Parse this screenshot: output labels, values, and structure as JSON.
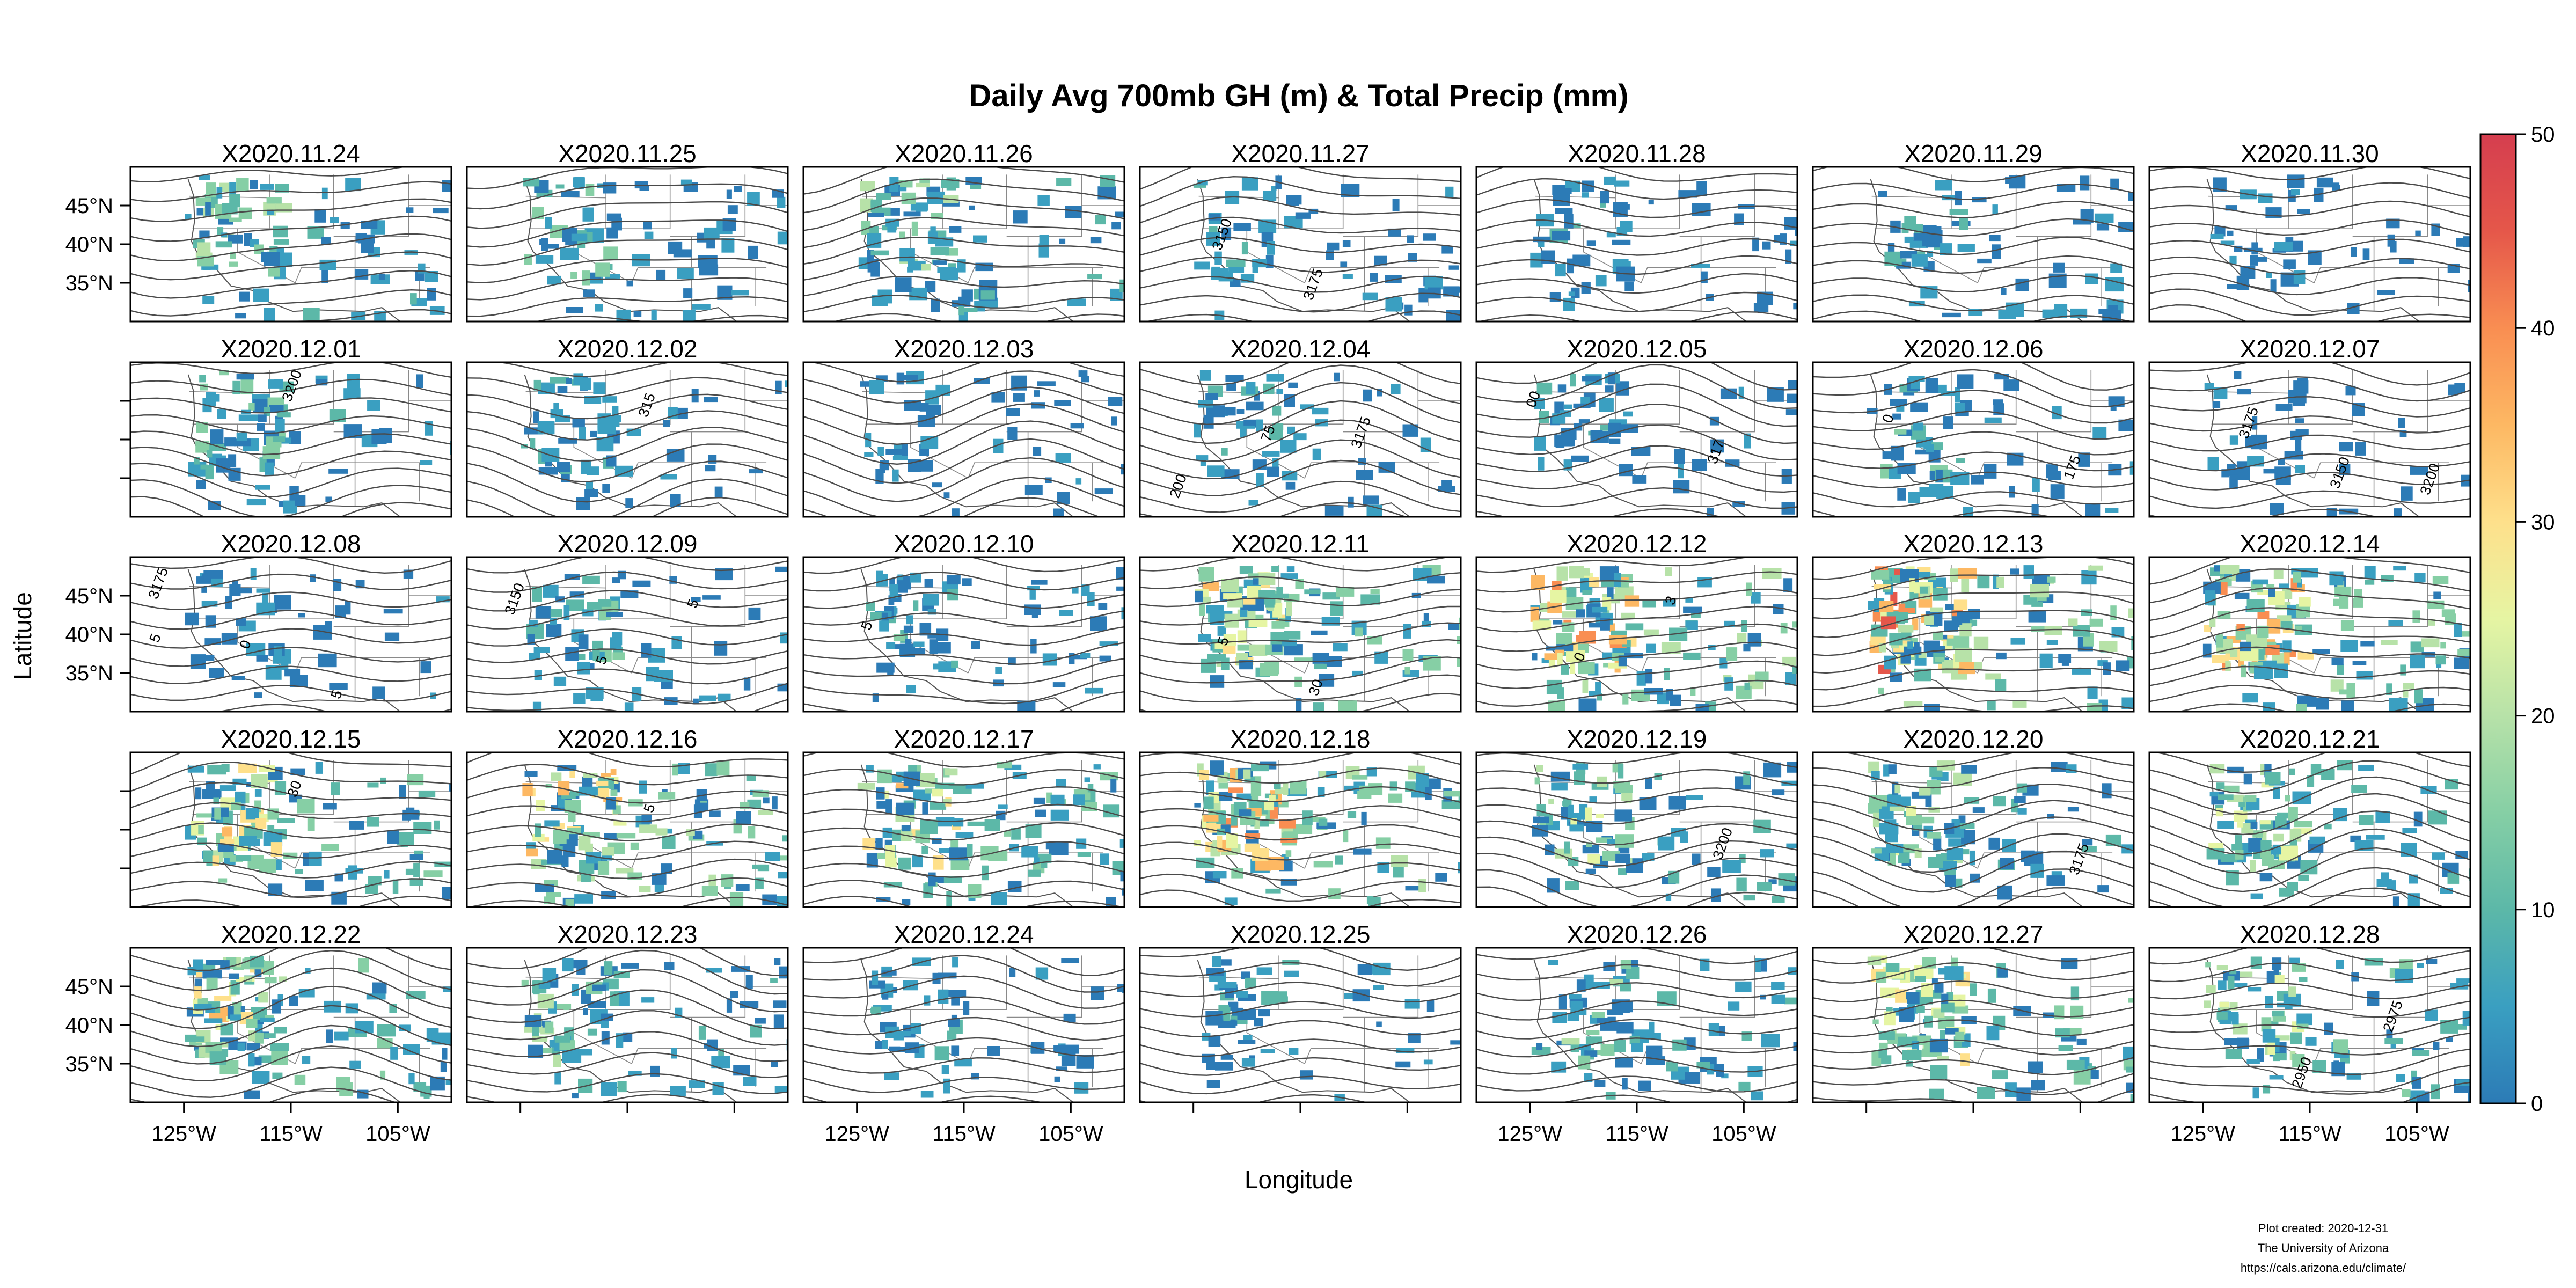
{
  "title": "Daily Avg 700mb GH (m) & Total Precip (mm)",
  "xlabel": "Longitude",
  "ylabel": "Latitude",
  "credits": [
    "Plot created: 2020-12-31",
    "The University of Arizona",
    "https://cals.arizona.edu/climate/"
  ],
  "colors": {
    "contour": "#4a4a4a",
    "precip_scale": [
      "#2c7bb6",
      "#3a9fc1",
      "#5cb8a8",
      "#86cfa5",
      "#b7e2a8",
      "#e6f5a3",
      "#fee08b",
      "#fdb863",
      "#f98e52",
      "#e5574a",
      "#d53e4f"
    ]
  },
  "chart_data": {
    "type": "heatmap",
    "layout": {
      "rows": 5,
      "cols": 7
    },
    "panels": [
      "X2020.11.24",
      "X2020.11.25",
      "X2020.11.26",
      "X2020.11.27",
      "X2020.11.28",
      "X2020.11.29",
      "X2020.11.30",
      "X2020.12.01",
      "X2020.12.02",
      "X2020.12.03",
      "X2020.12.04",
      "X2020.12.05",
      "X2020.12.06",
      "X2020.12.07",
      "X2020.12.08",
      "X2020.12.09",
      "X2020.12.10",
      "X2020.12.11",
      "X2020.12.12",
      "X2020.12.13",
      "X2020.12.14",
      "X2020.12.15",
      "X2020.12.16",
      "X2020.12.17",
      "X2020.12.18",
      "X2020.12.19",
      "X2020.12.20",
      "X2020.12.21",
      "X2020.12.22",
      "X2020.12.23",
      "X2020.12.24",
      "X2020.12.25",
      "X2020.12.26",
      "X2020.12.27",
      "X2020.12.28"
    ],
    "x_ticks": [
      "125°W",
      "115°W",
      "105°W"
    ],
    "x_tick_values": [
      -125,
      -115,
      -105
    ],
    "xlim": [
      -130,
      -100
    ],
    "y_ticks": [
      "45°N",
      "40°N",
      "35°N"
    ],
    "y_tick_values": [
      45,
      40,
      35
    ],
    "ylim": [
      30,
      50
    ],
    "x_labeled_cols": [
      0,
      2,
      4,
      6
    ],
    "y_labeled_rows": [
      0,
      2,
      4
    ],
    "colorbar": {
      "ticks": [
        "0",
        "10",
        "20",
        "30",
        "40",
        "50"
      ],
      "tick_values": [
        0,
        10,
        20,
        30,
        40,
        50
      ],
      "range": [
        0,
        50
      ]
    },
    "precip_intensity": [
      0.35,
      0.3,
      0.4,
      0.2,
      0.18,
      0.22,
      0.12,
      0.3,
      0.2,
      0.15,
      0.2,
      0.18,
      0.25,
      0.1,
      0.15,
      0.25,
      0.3,
      0.55,
      0.65,
      0.75,
      0.7,
      0.55,
      0.6,
      0.55,
      0.65,
      0.4,
      0.4,
      0.45,
      0.55,
      0.35,
      0.2,
      0.2,
      0.35,
      0.5,
      0.45
    ],
    "contour_labels": [
      {
        "panel": 3,
        "values": [
          "3150",
          "3175"
        ]
      },
      {
        "panel": 7,
        "values": [
          "3200"
        ]
      },
      {
        "panel": 8,
        "values": [
          "315"
        ]
      },
      {
        "panel": 10,
        "values": [
          "3175",
          "200",
          "75"
        ]
      },
      {
        "panel": 11,
        "values": [
          "317",
          "00"
        ]
      },
      {
        "panel": 12,
        "values": [
          "175",
          "0"
        ]
      },
      {
        "panel": 13,
        "values": [
          "3200",
          "3175",
          "3150"
        ]
      },
      {
        "panel": 14,
        "values": [
          "3175",
          "0",
          "5",
          "5"
        ]
      },
      {
        "panel": 15,
        "values": [
          "3150",
          "5",
          "5"
        ]
      },
      {
        "panel": 16,
        "values": [
          "5"
        ]
      },
      {
        "panel": 17,
        "values": [
          "5",
          "30"
        ]
      },
      {
        "panel": 18,
        "values": [
          "0",
          "3"
        ]
      },
      {
        "panel": 21,
        "values": [
          "30"
        ]
      },
      {
        "panel": 22,
        "values": [
          "5"
        ]
      },
      {
        "panel": 25,
        "values": [
          "3200"
        ]
      },
      {
        "panel": 26,
        "values": [
          "3175"
        ]
      },
      {
        "panel": 34,
        "values": [
          "2950",
          "2975"
        ]
      }
    ]
  }
}
